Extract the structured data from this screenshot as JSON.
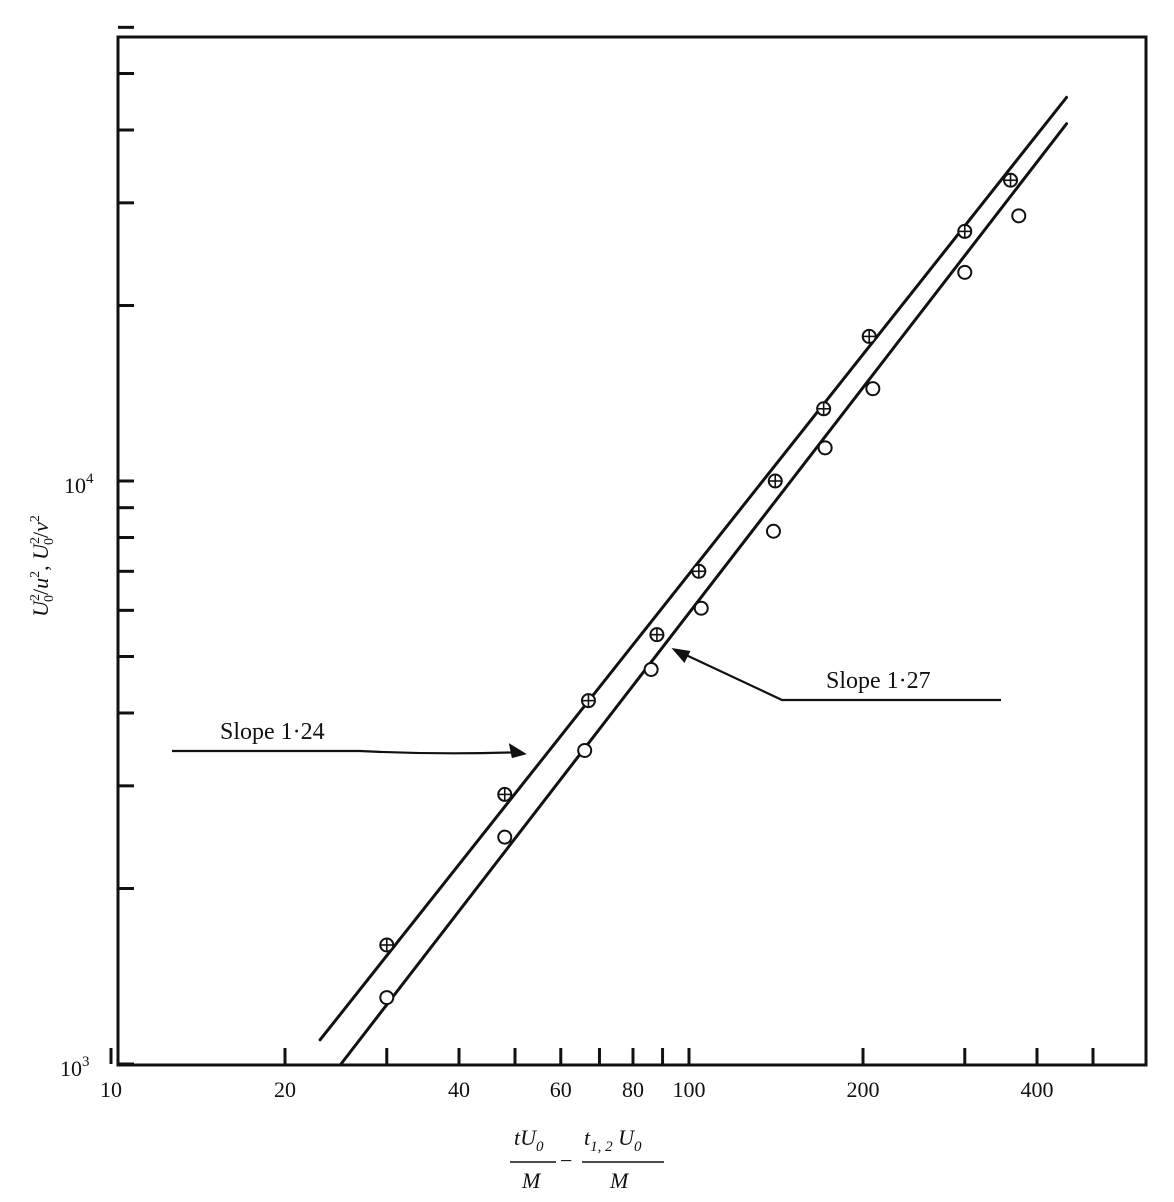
{
  "chart_data": {
    "type": "scatter",
    "x_scale": "log",
    "y_scale": "log",
    "xlim": [
      10,
      570
    ],
    "ylim": [
      1000,
      70000
    ],
    "grid": false,
    "legend": "none",
    "x_ticks_major": [
      10,
      20,
      40,
      60,
      80,
      100,
      200,
      400
    ],
    "x_tick_labels": [
      "10",
      "20",
      "40",
      "60",
      "80",
      "100",
      "200",
      "400"
    ],
    "x_ticks_minor": [
      30,
      50,
      70,
      90,
      300,
      500
    ],
    "y_ticks_major": [
      {
        "value": 1000,
        "base": "10",
        "exp": "3"
      },
      {
        "value": 10000,
        "base": "10",
        "exp": "4"
      }
    ],
    "y_ticks_minor": [
      2000,
      3000,
      4000,
      5000,
      6000,
      7000,
      8000,
      9000,
      20000,
      30000,
      40000,
      50000,
      60000
    ],
    "xlabel": {
      "term1_num": "tU",
      "term1_num_sub": "0",
      "term1_den": "M",
      "minus": "−",
      "term2_num": "t",
      "term2_num_sub": "1, 2",
      "term2_num_tail": " U",
      "term2_num_tail_sub": "0",
      "term2_den": "M"
    },
    "ylabel": {
      "part1": "U",
      "part1_sup": "2",
      "part1_sub": "0",
      "part1_tail": "/",
      "part1_var": "u",
      "part1_var_sup": "2",
      "sep": ",   ",
      "part2": "U",
      "part2_sup": "2",
      "part2_sub": "0",
      "part2_tail": "/",
      "part2_var": "v",
      "part2_var_sup": "2"
    },
    "series": [
      {
        "marker": "circle-plus",
        "points": [
          {
            "x": 30,
            "y": 1600
          },
          {
            "x": 48,
            "y": 2900
          },
          {
            "x": 67,
            "y": 4200
          },
          {
            "x": 88,
            "y": 5450
          },
          {
            "x": 104,
            "y": 7000
          },
          {
            "x": 141,
            "y": 10000
          },
          {
            "x": 171,
            "y": 13300
          },
          {
            "x": 205,
            "y": 17700
          },
          {
            "x": 300,
            "y": 26800
          },
          {
            "x": 360,
            "y": 32800
          }
        ],
        "fit": {
          "x": [
            23,
            450
          ],
          "y": [
            1100,
            45500
          ]
        },
        "annotation": {
          "text": "Slope 1·24",
          "arrow_to": {
            "x": 52,
            "y": 3400
          }
        }
      },
      {
        "marker": "circle",
        "points": [
          {
            "x": 30,
            "y": 1300
          },
          {
            "x": 48,
            "y": 2450
          },
          {
            "x": 66,
            "y": 3450
          },
          {
            "x": 86,
            "y": 4750
          },
          {
            "x": 105,
            "y": 6050
          },
          {
            "x": 140,
            "y": 8200
          },
          {
            "x": 172,
            "y": 11400
          },
          {
            "x": 208,
            "y": 14400
          },
          {
            "x": 300,
            "y": 22800
          },
          {
            "x": 372,
            "y": 28500
          }
        ],
        "fit": {
          "x": [
            25,
            450
          ],
          "y": [
            1000,
            41000
          ]
        },
        "annotation": {
          "text": "Slope 1·27",
          "arrow_to": {
            "x": 94,
            "y": 5150
          }
        }
      }
    ]
  }
}
